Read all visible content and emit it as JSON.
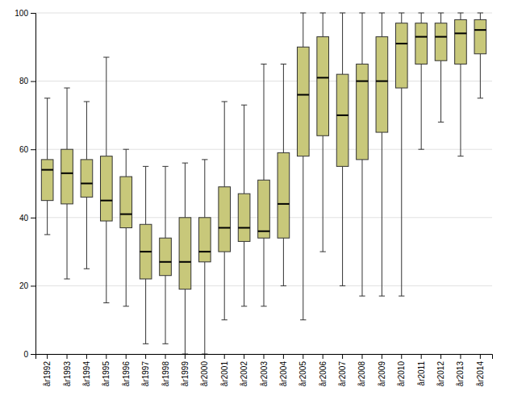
{
  "chart_data": {
    "type": "box",
    "categories": [
      "år1992",
      "år1993",
      "år1994",
      "år1995",
      "år1996",
      "år1997",
      "år1998",
      "år1999",
      "år2000",
      "år2001",
      "år2002",
      "år2003",
      "år2004",
      "år2005",
      "år2006",
      "år2007",
      "år2008",
      "år2009",
      "år2010",
      "år2011",
      "år2012",
      "år2013",
      "år2014"
    ],
    "values": [
      {
        "whislo": 35,
        "q1": 45,
        "med": 54,
        "q3": 57,
        "whishi": 75
      },
      {
        "whislo": 22,
        "q1": 44,
        "med": 53,
        "q3": 60,
        "whishi": 78
      },
      {
        "whislo": 25,
        "q1": 46,
        "med": 50,
        "q3": 57,
        "whishi": 74
      },
      {
        "whislo": 15,
        "q1": 39,
        "med": 45,
        "q3": 58,
        "whishi": 87
      },
      {
        "whislo": 14,
        "q1": 37,
        "med": 41,
        "q3": 52,
        "whishi": 60
      },
      {
        "whislo": 3,
        "q1": 22,
        "med": 30,
        "q3": 38,
        "whishi": 55
      },
      {
        "whislo": 3,
        "q1": 23,
        "med": 27,
        "q3": 34,
        "whishi": 55
      },
      {
        "whislo": 0,
        "q1": 19,
        "med": 27,
        "q3": 40,
        "whishi": 56
      },
      {
        "whislo": 0,
        "q1": 27,
        "med": 30,
        "q3": 40,
        "whishi": 57
      },
      {
        "whislo": 10,
        "q1": 30,
        "med": 37,
        "q3": 49,
        "whishi": 74
      },
      {
        "whislo": 14,
        "q1": 33,
        "med": 37,
        "q3": 47,
        "whishi": 73
      },
      {
        "whislo": 14,
        "q1": 34,
        "med": 36,
        "q3": 51,
        "whishi": 85
      },
      {
        "whislo": 20,
        "q1": 34,
        "med": 44,
        "q3": 59,
        "whishi": 85
      },
      {
        "whislo": 10,
        "q1": 58,
        "med": 76,
        "q3": 90,
        "whishi": 100
      },
      {
        "whislo": 30,
        "q1": 64,
        "med": 81,
        "q3": 93,
        "whishi": 100
      },
      {
        "whislo": 20,
        "q1": 55,
        "med": 70,
        "q3": 82,
        "whishi": 100
      },
      {
        "whislo": 17,
        "q1": 57,
        "med": 80,
        "q3": 85,
        "whishi": 100
      },
      {
        "whislo": 17,
        "q1": 65,
        "med": 80,
        "q3": 93,
        "whishi": 100
      },
      {
        "whislo": 17,
        "q1": 78,
        "med": 91,
        "q3": 97,
        "whishi": 100
      },
      {
        "whislo": 60,
        "q1": 85,
        "med": 93,
        "q3": 97,
        "whishi": 100
      },
      {
        "whislo": 68,
        "q1": 86,
        "med": 93,
        "q3": 97,
        "whishi": 100
      },
      {
        "whislo": 58,
        "q1": 85,
        "med": 94,
        "q3": 98,
        "whishi": 100
      },
      {
        "whislo": 75,
        "q1": 88,
        "med": 95,
        "q3": 98,
        "whishi": 100
      }
    ],
    "color": "#c8c87a",
    "ylim": [
      0,
      100
    ],
    "yticks": [
      0,
      20,
      40,
      60,
      80,
      100
    ],
    "grid": true
  }
}
